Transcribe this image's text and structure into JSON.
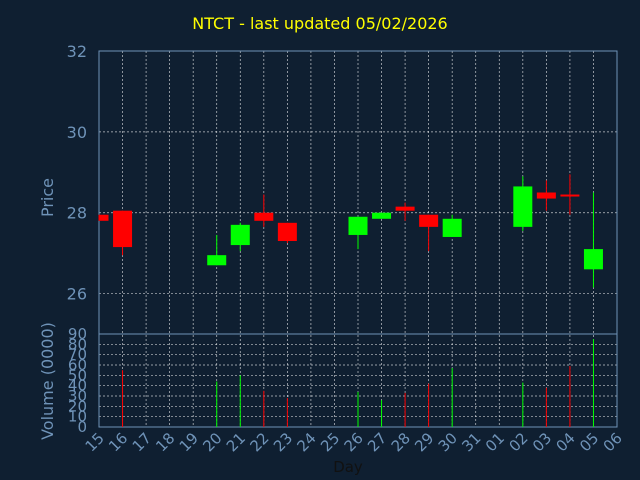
{
  "title": "NTCT - last updated 05/02/2026",
  "colors": {
    "background": "#0f1f31",
    "title": "#ffff00",
    "axis_text": "#6f93b8",
    "grid": "#ffffff",
    "up": "#00ff00",
    "down": "#ff0000"
  },
  "chart_data": [
    {
      "type": "candlestick",
      "ylabel": "Price",
      "ylim": [
        25,
        32
      ],
      "yticks": [
        26,
        28,
        30,
        32
      ],
      "categories": [
        "15",
        "16",
        "17",
        "18",
        "19",
        "20",
        "21",
        "22",
        "23",
        "24",
        "25",
        "26",
        "27",
        "28",
        "29",
        "30",
        "31",
        "01",
        "02",
        "03",
        "04",
        "05",
        "06"
      ],
      "candles": [
        {
          "day": "15",
          "open": 27.95,
          "high": 27.95,
          "low": 27.8,
          "close": 27.8
        },
        {
          "day": "16",
          "open": 28.05,
          "high": 28.05,
          "low": 26.95,
          "close": 27.15
        },
        {
          "day": "20",
          "open": 26.7,
          "high": 27.45,
          "low": 26.7,
          "close": 26.95
        },
        {
          "day": "21",
          "open": 27.2,
          "high": 27.75,
          "low": 27.05,
          "close": 27.7
        },
        {
          "day": "22",
          "open": 28.0,
          "high": 28.45,
          "low": 27.65,
          "close": 27.8
        },
        {
          "day": "23",
          "open": 27.75,
          "high": 27.75,
          "low": 27.25,
          "close": 27.3
        },
        {
          "day": "26",
          "open": 27.45,
          "high": 27.9,
          "low": 27.1,
          "close": 27.9
        },
        {
          "day": "27",
          "open": 27.85,
          "high": 28.0,
          "low": 27.85,
          "close": 28.0
        },
        {
          "day": "28",
          "open": 28.15,
          "high": 28.25,
          "low": 27.8,
          "close": 28.05
        },
        {
          "day": "29",
          "open": 27.95,
          "high": 27.95,
          "low": 27.05,
          "close": 27.65
        },
        {
          "day": "30",
          "open": 27.4,
          "high": 27.95,
          "low": 27.4,
          "close": 27.85
        },
        {
          "day": "02",
          "open": 27.65,
          "high": 28.9,
          "low": 27.55,
          "close": 28.65
        },
        {
          "day": "03",
          "open": 28.5,
          "high": 28.8,
          "low": 28.05,
          "close": 28.35
        },
        {
          "day": "04",
          "open": 28.45,
          "high": 28.95,
          "low": 27.95,
          "close": 28.4
        },
        {
          "day": "05",
          "open": 26.6,
          "high": 28.5,
          "low": 26.15,
          "close": 27.1
        }
      ]
    },
    {
      "type": "bar",
      "ylabel": "Volume (0000)",
      "xlabel": "Day",
      "ylim": [
        0,
        90
      ],
      "yticks": [
        0,
        10,
        20,
        30,
        40,
        50,
        60,
        70,
        80,
        90
      ],
      "categories": [
        "15",
        "16",
        "17",
        "18",
        "19",
        "20",
        "21",
        "22",
        "23",
        "24",
        "25",
        "26",
        "27",
        "28",
        "29",
        "30",
        "31",
        "01",
        "02",
        "03",
        "04",
        "05",
        "06"
      ],
      "bars": [
        {
          "day": "16",
          "value": 55,
          "dir": "down"
        },
        {
          "day": "20",
          "value": 44,
          "dir": "up"
        },
        {
          "day": "21",
          "value": 50,
          "dir": "up"
        },
        {
          "day": "22",
          "value": 35,
          "dir": "down"
        },
        {
          "day": "23",
          "value": 28,
          "dir": "down"
        },
        {
          "day": "26",
          "value": 34,
          "dir": "up"
        },
        {
          "day": "27",
          "value": 26,
          "dir": "up"
        },
        {
          "day": "28",
          "value": 33,
          "dir": "down"
        },
        {
          "day": "29",
          "value": 42,
          "dir": "down"
        },
        {
          "day": "30",
          "value": 57,
          "dir": "up"
        },
        {
          "day": "02",
          "value": 43,
          "dir": "up"
        },
        {
          "day": "03",
          "value": 38,
          "dir": "down"
        },
        {
          "day": "04",
          "value": 59,
          "dir": "down"
        },
        {
          "day": "05",
          "value": 85,
          "dir": "up"
        }
      ]
    }
  ]
}
